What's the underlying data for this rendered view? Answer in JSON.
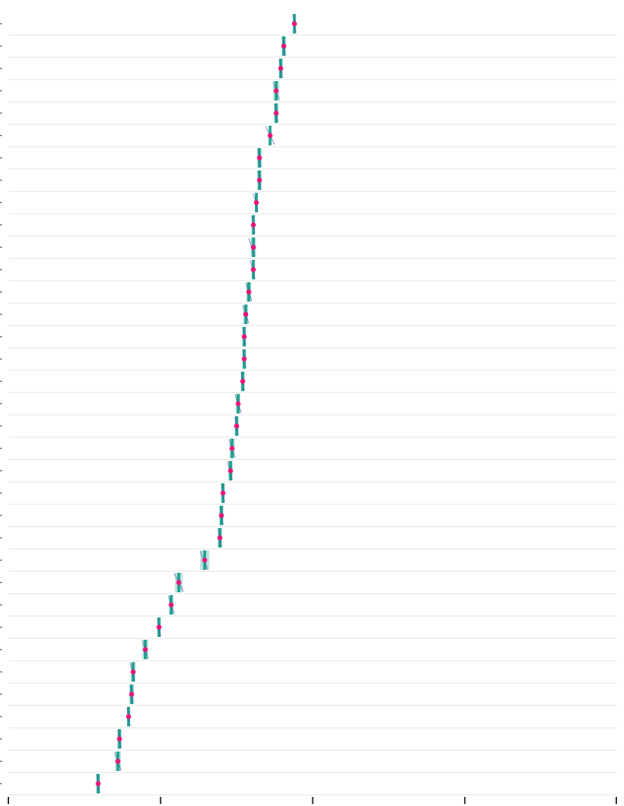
{
  "chart_data": {
    "type": "scatter",
    "title": "",
    "xlabel": "",
    "ylabel": "",
    "xlim": [
      0,
      4
    ],
    "x_ticks": [
      0,
      1,
      2,
      3,
      4
    ],
    "show_tick_labels": false,
    "grid": true,
    "legend": "none",
    "colors": {
      "point": "#e8177b",
      "interval": "#1fa18e",
      "interval_light": "#a6dcd3",
      "line": "#3d4ea8",
      "grid": "#e6e6e6",
      "axis": "#222222"
    },
    "rows": [
      {
        "value": 1.88,
        "low": 1.87,
        "high": 1.89,
        "band": 0.02
      },
      {
        "value": 1.81,
        "low": 1.8,
        "high": 1.82,
        "band": 0.03
      },
      {
        "value": 1.79,
        "low": 1.78,
        "high": 1.8,
        "band": 0.025
      },
      {
        "value": 1.76,
        "low": 1.74,
        "high": 1.78,
        "band": 0.04
      },
      {
        "value": 1.76,
        "low": 1.75,
        "high": 1.77,
        "band": 0.03
      },
      {
        "value": 1.72,
        "low": 1.69,
        "high": 1.75,
        "band": 0.015
      },
      {
        "value": 1.65,
        "low": 1.64,
        "high": 1.66,
        "band": 0.03
      },
      {
        "value": 1.65,
        "low": 1.64,
        "high": 1.66,
        "band": 0.03
      },
      {
        "value": 1.63,
        "low": 1.61,
        "high": 1.64,
        "band": 0.015
      },
      {
        "value": 1.61,
        "low": 1.6,
        "high": 1.62,
        "band": 0.02
      },
      {
        "value": 1.61,
        "low": 1.58,
        "high": 1.62,
        "band": 0.035
      },
      {
        "value": 1.61,
        "low": 1.59,
        "high": 1.62,
        "band": 0.02
      },
      {
        "value": 1.58,
        "low": 1.56,
        "high": 1.6,
        "band": 0.035
      },
      {
        "value": 1.56,
        "low": 1.54,
        "high": 1.58,
        "band": 0.03
      },
      {
        "value": 1.55,
        "low": 1.54,
        "high": 1.56,
        "band": 0.025
      },
      {
        "value": 1.55,
        "low": 1.54,
        "high": 1.56,
        "band": 0.025
      },
      {
        "value": 1.54,
        "low": 1.53,
        "high": 1.55,
        "band": 0.025
      },
      {
        "value": 1.51,
        "low": 1.49,
        "high": 1.53,
        "band": 0.03
      },
      {
        "value": 1.5,
        "low": 1.49,
        "high": 1.51,
        "band": 0.025
      },
      {
        "value": 1.47,
        "low": 1.45,
        "high": 1.49,
        "band": 0.035
      },
      {
        "value": 1.46,
        "low": 1.44,
        "high": 1.47,
        "band": 0.03
      },
      {
        "value": 1.41,
        "low": 1.4,
        "high": 1.42,
        "band": 0.025
      },
      {
        "value": 1.4,
        "low": 1.39,
        "high": 1.41,
        "band": 0.03
      },
      {
        "value": 1.39,
        "low": 1.38,
        "high": 1.4,
        "band": 0.03
      },
      {
        "value": 1.29,
        "low": 1.26,
        "high": 1.31,
        "band": 0.06
      },
      {
        "value": 1.12,
        "low": 1.09,
        "high": 1.15,
        "band": 0.05
      },
      {
        "value": 1.07,
        "low": 1.05,
        "high": 1.09,
        "band": 0.03
      },
      {
        "value": 0.99,
        "low": 0.98,
        "high": 1.0,
        "band": 0.025
      },
      {
        "value": 0.9,
        "low": 0.88,
        "high": 0.92,
        "band": 0.04
      },
      {
        "value": 0.82,
        "low": 0.8,
        "high": 0.83,
        "band": 0.03
      },
      {
        "value": 0.81,
        "low": 0.8,
        "high": 0.82,
        "band": 0.03
      },
      {
        "value": 0.79,
        "low": 0.78,
        "high": 0.8,
        "band": 0.02
      },
      {
        "value": 0.73,
        "low": 0.72,
        "high": 0.74,
        "band": 0.03
      },
      {
        "value": 0.72,
        "low": 0.7,
        "high": 0.74,
        "band": 0.04
      },
      {
        "value": 0.59,
        "low": 0.58,
        "high": 0.6,
        "band": 0.025
      }
    ]
  }
}
